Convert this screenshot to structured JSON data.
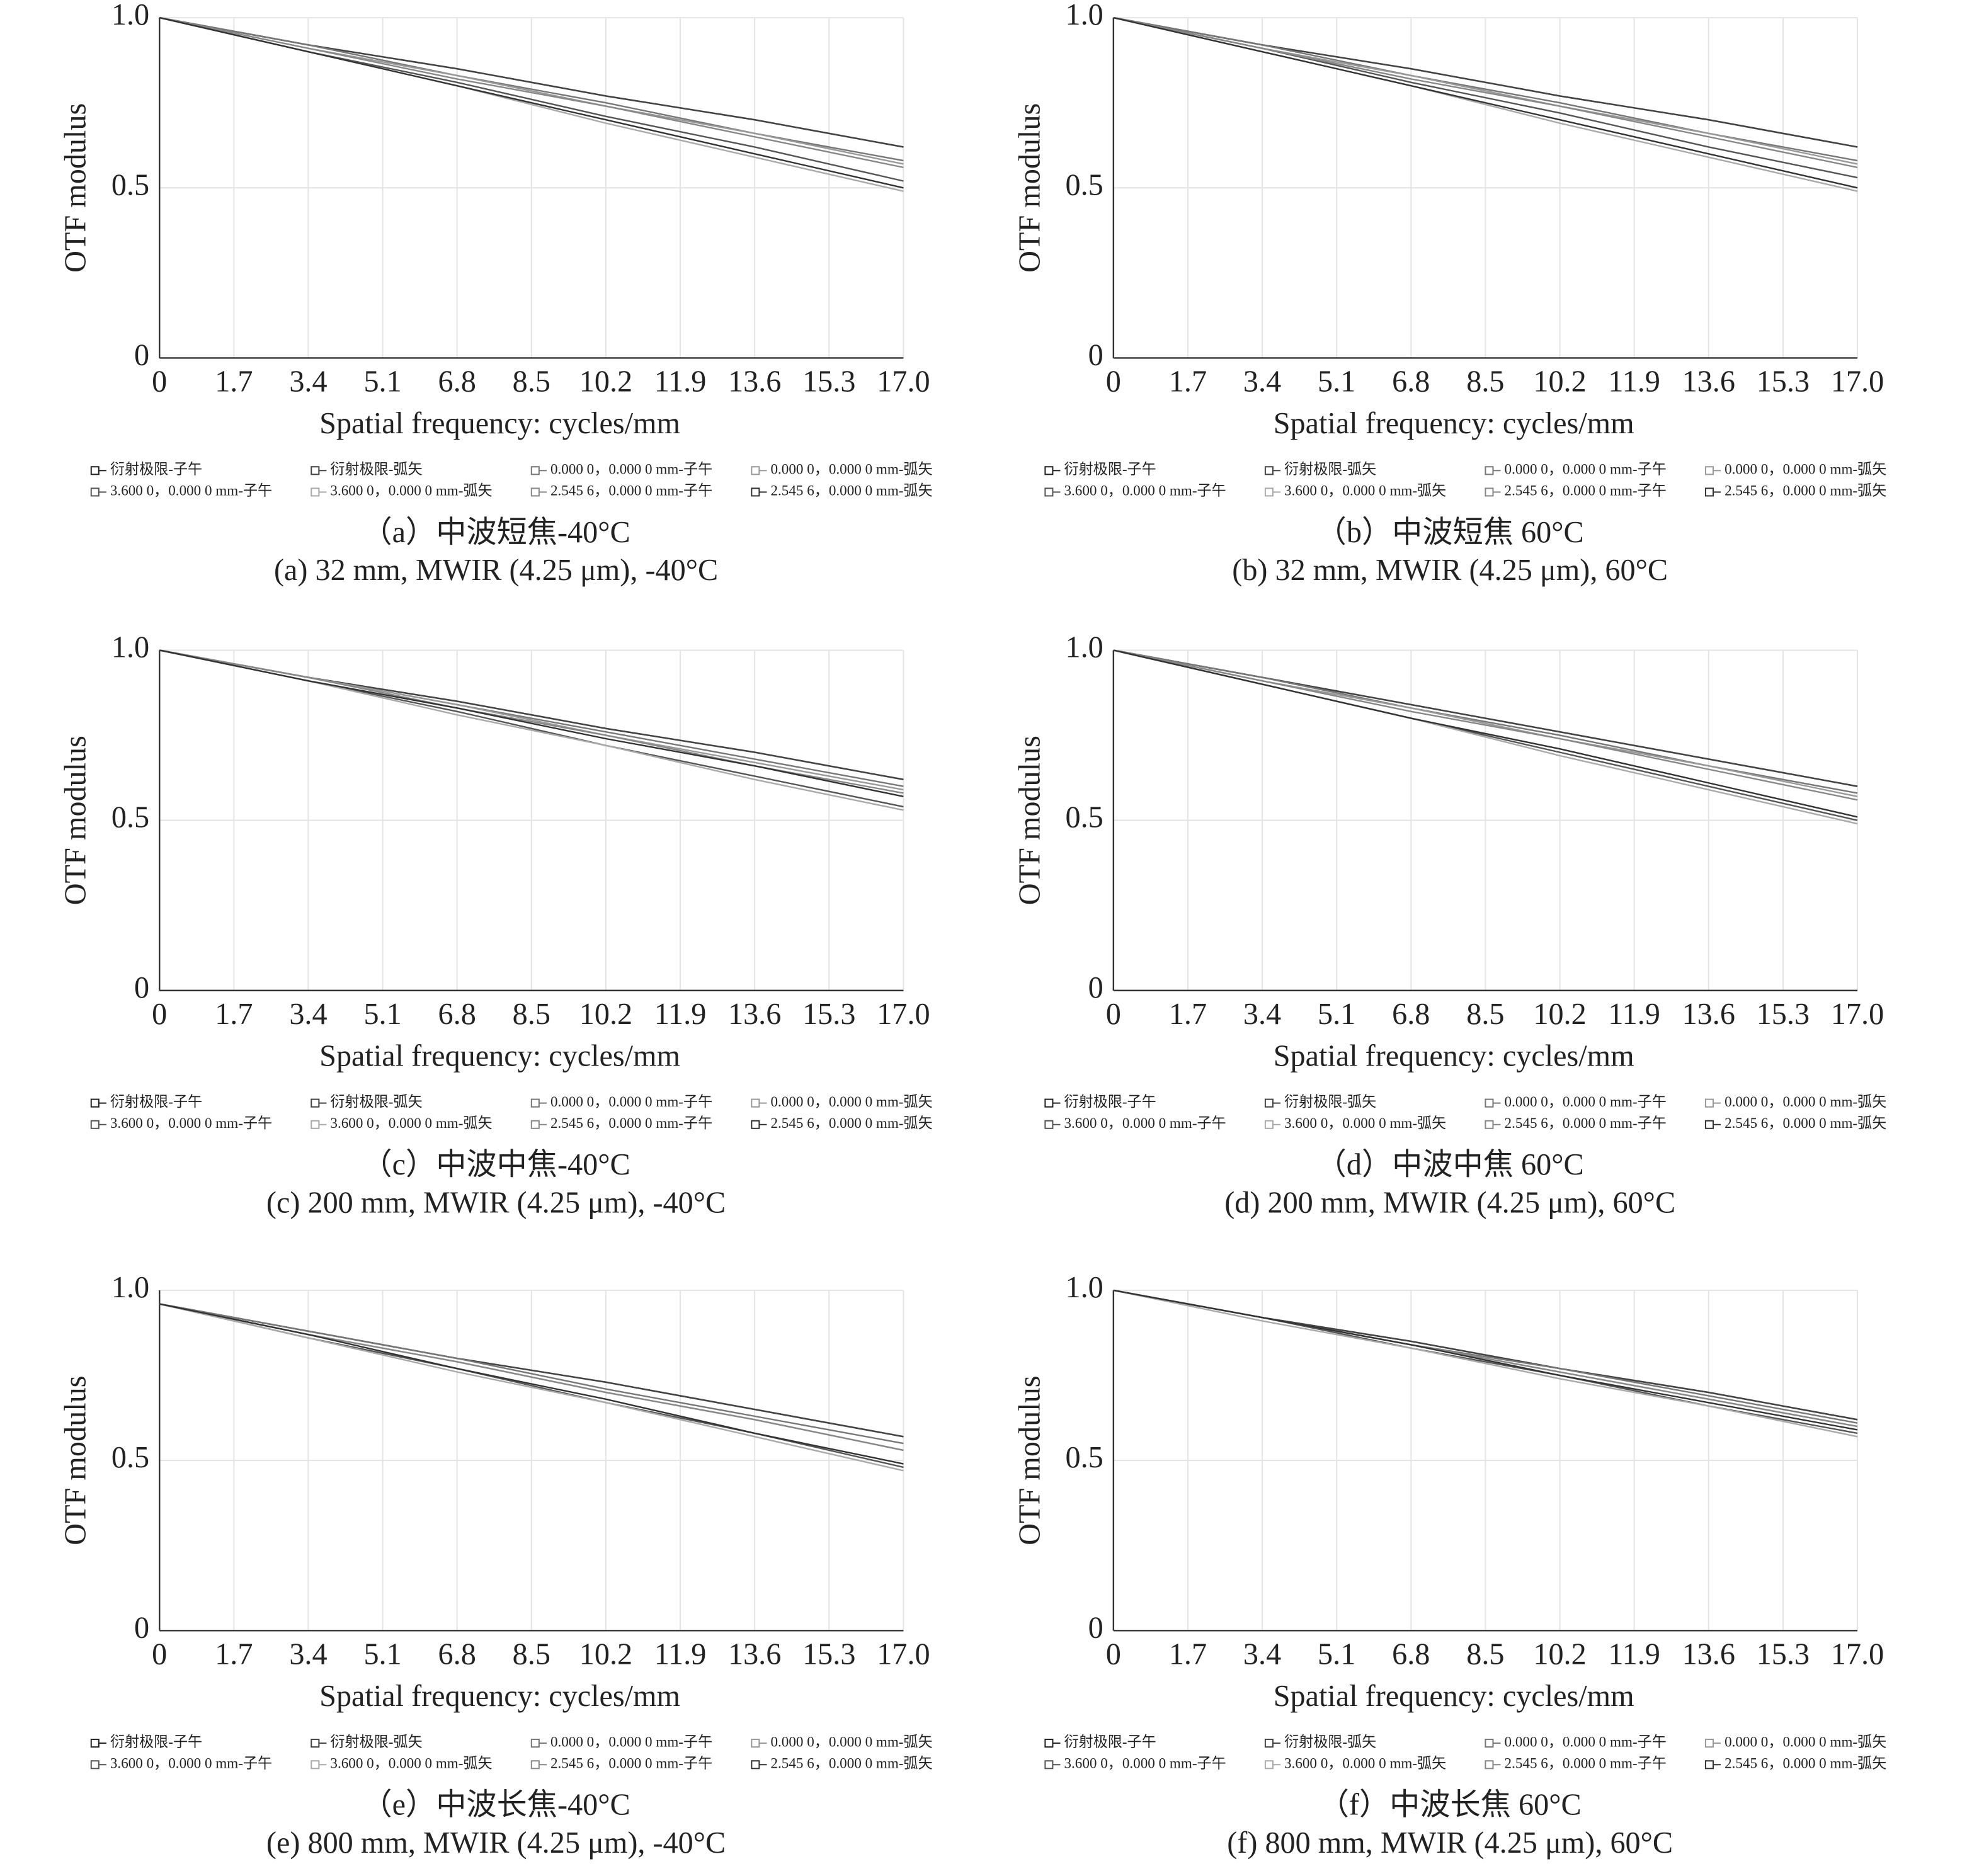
{
  "chart_data": [
    {
      "type": "line",
      "y_label": "OTF modulus",
      "x_label": "Spatial frequency: cycles/mm",
      "caption": "（a）中波短焦-40°C",
      "subtitle": "(a) 32 mm, MWIR (4.25 μm), -40°C",
      "xlim": [
        0,
        17
      ],
      "ylim": [
        0,
        1
      ],
      "xticks": [
        0,
        1.7,
        3.4,
        5.1,
        6.8,
        8.5,
        10.2,
        11.9,
        13.6,
        15.3,
        {
          "value": 17,
          "label": "17.0"
        }
      ],
      "yticks": [
        0,
        0.5,
        {
          "value": 1,
          "label": "1.0"
        }
      ],
      "grid": true,
      "x": [
        0,
        3.4,
        6.8,
        10.2,
        13.6,
        17
      ],
      "series": [
        {
          "name": "衍射极限-子午",
          "color": "#222222",
          "values": [
            1,
            0.92,
            0.85,
            0.77,
            0.7,
            0.62
          ]
        },
        {
          "name": "衍射极限-弧矢",
          "color": "#444444",
          "values": [
            1,
            0.92,
            0.85,
            0.77,
            0.7,
            0.62
          ]
        },
        {
          "name": "0.000 0，0.000 0 mm-子午",
          "color": "#777777",
          "values": [
            1,
            0.92,
            0.83,
            0.75,
            0.66,
            0.58
          ]
        },
        {
          "name": "0.000 0，0.000 0 mm-弧矢",
          "color": "#999999",
          "values": [
            1,
            0.91,
            0.83,
            0.74,
            0.66,
            0.57
          ]
        },
        {
          "name": "3.600 0，0.000 0 mm-子午",
          "color": "#555555",
          "values": [
            1,
            0.9,
            0.81,
            0.71,
            0.62,
            0.52
          ]
        },
        {
          "name": "3.600 0，0.000 0 mm-弧矢",
          "color": "#aaaaaa",
          "values": [
            1,
            0.9,
            0.8,
            0.69,
            0.59,
            0.49
          ]
        },
        {
          "name": "2.545 6，0.000 0 mm-子午",
          "color": "#888888",
          "values": [
            1,
            0.91,
            0.82,
            0.74,
            0.65,
            0.56
          ]
        },
        {
          "name": "2.545 6，0.000 0 mm-弧矢",
          "color": "#333333",
          "values": [
            1,
            0.9,
            0.8,
            0.7,
            0.6,
            0.5
          ]
        }
      ]
    },
    {
      "type": "line",
      "y_label": "OTF modulus",
      "x_label": "Spatial frequency: cycles/mm",
      "caption": "（b）中波短焦 60°C",
      "subtitle": "(b) 32 mm, MWIR (4.25 μm), 60°C",
      "xlim": [
        0,
        17
      ],
      "ylim": [
        0,
        1
      ],
      "xticks": [
        0,
        1.7,
        3.4,
        5.1,
        6.8,
        8.5,
        10.2,
        11.9,
        13.6,
        15.3,
        {
          "value": 17,
          "label": "17.0"
        }
      ],
      "yticks": [
        0,
        0.5,
        {
          "value": 1,
          "label": "1.0"
        }
      ],
      "grid": true,
      "x": [
        0,
        3.4,
        6.8,
        10.2,
        13.6,
        17
      ],
      "series": [
        {
          "name": "衍射极限-子午",
          "color": "#222222",
          "values": [
            1,
            0.92,
            0.85,
            0.77,
            0.7,
            0.62
          ]
        },
        {
          "name": "衍射极限-弧矢",
          "color": "#444444",
          "values": [
            1,
            0.92,
            0.85,
            0.77,
            0.7,
            0.62
          ]
        },
        {
          "name": "0.000 0，0.000 0 mm-子午",
          "color": "#777777",
          "values": [
            1,
            0.92,
            0.83,
            0.75,
            0.66,
            0.58
          ]
        },
        {
          "name": "0.000 0，0.000 0 mm-弧矢",
          "color": "#999999",
          "values": [
            1,
            0.91,
            0.83,
            0.74,
            0.66,
            0.57
          ]
        },
        {
          "name": "3.600 0，0.000 0 mm-子午",
          "color": "#555555",
          "values": [
            1,
            0.91,
            0.81,
            0.72,
            0.62,
            0.53
          ]
        },
        {
          "name": "3.600 0，0.000 0 mm-弧矢",
          "color": "#aaaaaa",
          "values": [
            1,
            0.9,
            0.8,
            0.69,
            0.59,
            0.49
          ]
        },
        {
          "name": "2.545 6，0.000 0 mm-子午",
          "color": "#888888",
          "values": [
            1,
            0.91,
            0.82,
            0.74,
            0.65,
            0.56
          ]
        },
        {
          "name": "2.545 6，0.000 0 mm-弧矢",
          "color": "#333333",
          "values": [
            1,
            0.9,
            0.8,
            0.7,
            0.6,
            0.5
          ]
        }
      ]
    },
    {
      "type": "line",
      "y_label": "OTF modulus",
      "x_label": "Spatial frequency: cycles/mm",
      "caption": "（c）中波中焦-40°C",
      "subtitle": "(c) 200 mm, MWIR (4.25 μm), -40°C",
      "xlim": [
        0,
        17
      ],
      "ylim": [
        0,
        1
      ],
      "xticks": [
        0,
        1.7,
        3.4,
        5.1,
        6.8,
        8.5,
        10.2,
        11.9,
        13.6,
        15.3,
        {
          "value": 17,
          "label": "17.0"
        }
      ],
      "yticks": [
        0,
        0.5,
        {
          "value": 1,
          "label": "1.0"
        }
      ],
      "grid": true,
      "x": [
        0,
        3.4,
        6.8,
        10.2,
        13.6,
        17
      ],
      "series": [
        {
          "name": "衍射极限-子午",
          "color": "#222222",
          "values": [
            1,
            0.92,
            0.85,
            0.77,
            0.7,
            0.62
          ]
        },
        {
          "name": "衍射极限-弧矢",
          "color": "#444444",
          "values": [
            1,
            0.92,
            0.85,
            0.77,
            0.7,
            0.62
          ]
        },
        {
          "name": "0.000 0，0.000 0 mm-子午",
          "color": "#777777",
          "values": [
            1,
            0.92,
            0.84,
            0.76,
            0.68,
            0.6
          ]
        },
        {
          "name": "0.000 0，0.000 0 mm-弧矢",
          "color": "#999999",
          "values": [
            1,
            0.92,
            0.84,
            0.75,
            0.67,
            0.59
          ]
        },
        {
          "name": "3.600 0，0.000 0 mm-子午",
          "color": "#555555",
          "values": [
            1,
            0.91,
            0.82,
            0.72,
            0.63,
            0.54
          ]
        },
        {
          "name": "3.600 0，0.000 0 mm-弧矢",
          "color": "#aaaaaa",
          "values": [
            1,
            0.91,
            0.81,
            0.72,
            0.62,
            0.53
          ]
        },
        {
          "name": "2.545 6，0.000 0 mm-子午",
          "color": "#888888",
          "values": [
            1,
            0.92,
            0.83,
            0.75,
            0.66,
            0.58
          ]
        },
        {
          "name": "2.545 6，0.000 0 mm-弧矢",
          "color": "#333333",
          "values": [
            1,
            0.91,
            0.83,
            0.74,
            0.66,
            0.57
          ]
        }
      ]
    },
    {
      "type": "line",
      "y_label": "OTF modulus",
      "x_label": "Spatial frequency: cycles/mm",
      "caption": "（d）中波中焦 60°C",
      "subtitle": "(d) 200 mm, MWIR (4.25 μm), 60°C",
      "xlim": [
        0,
        17
      ],
      "ylim": [
        0,
        1
      ],
      "xticks": [
        0,
        1.7,
        3.4,
        5.1,
        6.8,
        8.5,
        10.2,
        11.9,
        13.6,
        15.3,
        {
          "value": 17,
          "label": "17.0"
        }
      ],
      "yticks": [
        0,
        0.5,
        {
          "value": 1,
          "label": "1.0"
        }
      ],
      "grid": true,
      "x": [
        0,
        3.4,
        6.8,
        10.2,
        13.6,
        17
      ],
      "series": [
        {
          "name": "衍射极限-子午",
          "color": "#222222",
          "values": [
            1,
            0.92,
            0.84,
            0.76,
            0.68,
            0.6
          ]
        },
        {
          "name": "衍射极限-弧矢",
          "color": "#444444",
          "values": [
            1,
            0.92,
            0.84,
            0.76,
            0.68,
            0.6
          ]
        },
        {
          "name": "0.000 0，0.000 0 mm-子午",
          "color": "#777777",
          "values": [
            1,
            0.92,
            0.83,
            0.75,
            0.66,
            0.58
          ]
        },
        {
          "name": "0.000 0，0.000 0 mm-弧矢",
          "color": "#999999",
          "values": [
            1,
            0.91,
            0.83,
            0.74,
            0.66,
            0.57
          ]
        },
        {
          "name": "3.600 0，0.000 0 mm-子午",
          "color": "#555555",
          "values": [
            1,
            0.9,
            0.8,
            0.7,
            0.6,
            0.5
          ]
        },
        {
          "name": "3.600 0，0.000 0 mm-弧矢",
          "color": "#aaaaaa",
          "values": [
            1,
            0.9,
            0.8,
            0.69,
            0.59,
            0.49
          ]
        },
        {
          "name": "2.545 6，0.000 0 mm-子午",
          "color": "#888888",
          "values": [
            1,
            0.91,
            0.82,
            0.74,
            0.65,
            0.56
          ]
        },
        {
          "name": "2.545 6，0.000 0 mm-弧矢",
          "color": "#333333",
          "values": [
            1,
            0.9,
            0.8,
            0.71,
            0.61,
            0.51
          ]
        }
      ]
    },
    {
      "type": "line",
      "y_label": "OTF modulus",
      "x_label": "Spatial frequency: cycles/mm",
      "caption": "（e）中波长焦-40°C",
      "subtitle": "(e) 800 mm, MWIR (4.25 μm), -40°C",
      "xlim": [
        0,
        17
      ],
      "ylim": [
        0,
        1
      ],
      "xticks": [
        0,
        1.7,
        3.4,
        5.1,
        6.8,
        8.5,
        10.2,
        11.9,
        13.6,
        15.3,
        {
          "value": 17,
          "label": "17.0"
        }
      ],
      "yticks": [
        0,
        0.5,
        {
          "value": 1,
          "label": "1.0"
        }
      ],
      "grid": true,
      "x": [
        0,
        3.4,
        6.8,
        10.2,
        13.6,
        17
      ],
      "series": [
        {
          "name": "衍射极限-子午",
          "color": "#222222",
          "values": [
            0.96,
            0.88,
            0.8,
            0.73,
            0.65,
            0.57
          ]
        },
        {
          "name": "衍射极限-弧矢",
          "color": "#444444",
          "values": [
            0.96,
            0.88,
            0.8,
            0.73,
            0.65,
            0.57
          ]
        },
        {
          "name": "0.000 0，0.000 0 mm-子午",
          "color": "#777777",
          "values": [
            0.96,
            0.88,
            0.8,
            0.71,
            0.63,
            0.55
          ]
        },
        {
          "name": "0.000 0，0.000 0 mm-弧矢",
          "color": "#999999",
          "values": [
            0.96,
            0.87,
            0.79,
            0.7,
            0.62,
            0.53
          ]
        },
        {
          "name": "3.600 0，0.000 0 mm-子午",
          "color": "#555555",
          "values": [
            0.96,
            0.86,
            0.77,
            0.67,
            0.58,
            0.48
          ]
        },
        {
          "name": "3.600 0，0.000 0 mm-弧矢",
          "color": "#aaaaaa",
          "values": [
            0.96,
            0.86,
            0.76,
            0.67,
            0.57,
            0.47
          ]
        },
        {
          "name": "2.545 6，0.000 0 mm-子午",
          "color": "#888888",
          "values": [
            0.96,
            0.87,
            0.79,
            0.7,
            0.62,
            0.53
          ]
        },
        {
          "name": "2.545 6，0.000 0 mm-弧矢",
          "color": "#333333",
          "values": [
            0.96,
            0.87,
            0.77,
            0.68,
            0.58,
            0.49
          ]
        }
      ]
    },
    {
      "type": "line",
      "y_label": "OTF modulus",
      "x_label": "Spatial frequency: cycles/mm",
      "caption": "（f）中波长焦 60°C",
      "subtitle": "(f) 800 mm, MWIR (4.25 μm), 60°C",
      "xlim": [
        0,
        17
      ],
      "ylim": [
        0,
        1
      ],
      "xticks": [
        0,
        1.7,
        3.4,
        5.1,
        6.8,
        8.5,
        10.2,
        11.9,
        13.6,
        15.3,
        {
          "value": 17,
          "label": "17.0"
        }
      ],
      "yticks": [
        0,
        0.5,
        {
          "value": 1,
          "label": "1.0"
        }
      ],
      "grid": true,
      "x": [
        0,
        3.4,
        6.8,
        10.2,
        13.6,
        17
      ],
      "series": [
        {
          "name": "衍射极限-子午",
          "color": "#222222",
          "values": [
            1,
            0.92,
            0.85,
            0.77,
            0.7,
            0.62
          ]
        },
        {
          "name": "衍射极限-弧矢",
          "color": "#444444",
          "values": [
            1,
            0.92,
            0.85,
            0.77,
            0.7,
            0.62
          ]
        },
        {
          "name": "0.000 0，0.000 0 mm-子午",
          "color": "#777777",
          "values": [
            1,
            0.92,
            0.84,
            0.77,
            0.69,
            0.61
          ]
        },
        {
          "name": "0.000 0，0.000 0 mm-弧矢",
          "color": "#999999",
          "values": [
            1,
            0.92,
            0.84,
            0.76,
            0.68,
            0.6
          ]
        },
        {
          "name": "3.600 0，0.000 0 mm-子午",
          "color": "#555555",
          "values": [
            1,
            0.92,
            0.83,
            0.75,
            0.66,
            0.58
          ]
        },
        {
          "name": "3.600 0，0.000 0 mm-弧矢",
          "color": "#aaaaaa",
          "values": [
            1,
            0.91,
            0.83,
            0.74,
            0.66,
            0.57
          ]
        },
        {
          "name": "2.545 6，0.000 0 mm-子午",
          "color": "#888888",
          "values": [
            1,
            0.92,
            0.84,
            0.76,
            0.68,
            0.6
          ]
        },
        {
          "name": "2.545 6，0.000 0 mm-弧矢",
          "color": "#333333",
          "values": [
            1,
            0.92,
            0.84,
            0.75,
            0.67,
            0.59
          ]
        }
      ]
    }
  ]
}
